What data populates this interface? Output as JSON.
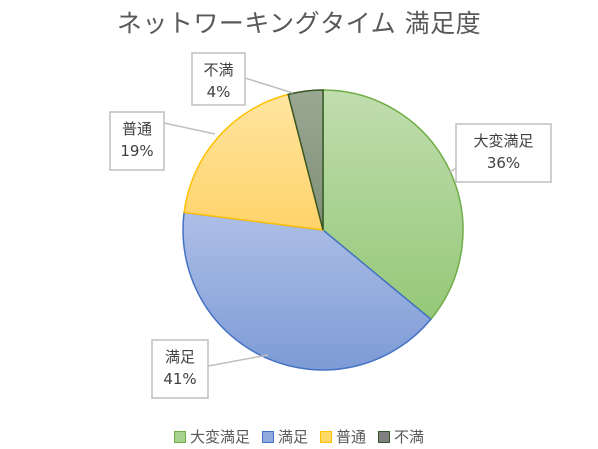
{
  "chart_data": {
    "type": "pie",
    "title": "ネットワーキングタイム 満足度",
    "categories": [
      "大変満足",
      "満足",
      "普通",
      "不満"
    ],
    "values": [
      36,
      41,
      19,
      4
    ],
    "labels": [
      "36%",
      "41%",
      "19%",
      "4%"
    ],
    "colors": {
      "fill": [
        "#a9d18e",
        "#8faadc",
        "#ffd966",
        "#a9a9a9"
      ],
      "stroke": [
        "#70ad47",
        "#4472c4",
        "#ffc000",
        "#375623"
      ],
      "legend_fill": [
        "#a9d18e",
        "#8faadc",
        "#ffd966",
        "#808080"
      ],
      "legend_stroke": [
        "#70ad47",
        "#4472c4",
        "#ffc000",
        "#375623"
      ]
    },
    "start_angle_deg": 0,
    "direction": "clockwise",
    "legend": "bottom"
  }
}
